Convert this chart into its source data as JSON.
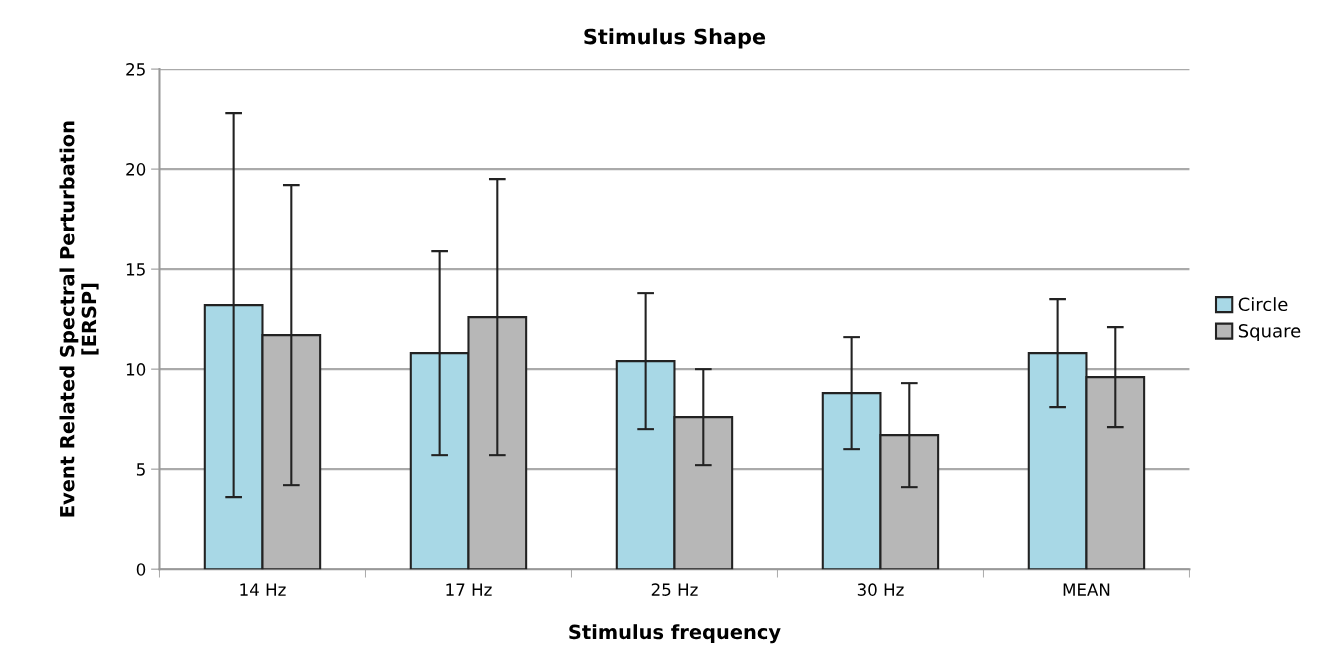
{
  "chart_data": {
    "type": "bar",
    "title": "Stimulus Shape",
    "xlabel": "Stimulus frequency",
    "ylabel": "Event Related Spectral Perturbation\n[ERSP]",
    "categories": [
      "14 Hz",
      "17 Hz",
      "25 Hz",
      "30 Hz",
      "MEAN"
    ],
    "series": [
      {
        "name": "Circle",
        "color": "#a8d8e6",
        "values": [
          13.2,
          10.8,
          10.4,
          8.8,
          10.8
        ],
        "errors": [
          9.6,
          5.1,
          3.4,
          2.8,
          2.7
        ]
      },
      {
        "name": "Square",
        "color": "#b7b7b7",
        "values": [
          11.7,
          12.6,
          7.6,
          6.7,
          9.6
        ],
        "errors": [
          7.5,
          6.9,
          2.4,
          2.6,
          2.5
        ]
      }
    ],
    "ylim": [
      0,
      25
    ],
    "yticks": [
      0,
      5,
      10,
      15,
      20,
      25
    ],
    "grid": "y",
    "legend": "right"
  }
}
